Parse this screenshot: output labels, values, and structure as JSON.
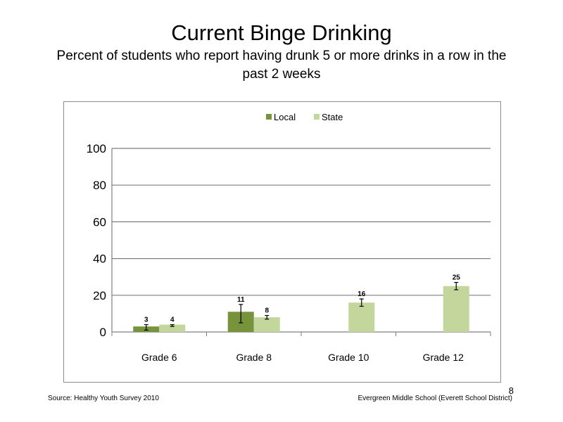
{
  "slide": {
    "title": "Current Binge Drinking",
    "subtitle": "Percent of students who report having drunk 5 or more drinks in a row in the past 2 weeks",
    "source": "Source: Healthy Youth Survey 2010",
    "school": "Evergreen Middle School (Everett School District)",
    "page_number": "8"
  },
  "chart_data": {
    "type": "bar",
    "title": "",
    "xlabel": "",
    "ylabel": "",
    "ylim": [
      0,
      100
    ],
    "yticks": [
      0,
      20,
      40,
      60,
      80,
      100
    ],
    "grid": true,
    "legend_position": "top",
    "categories": [
      "Grade 6",
      "Grade 8",
      "Grade 10",
      "Grade 12"
    ],
    "series": [
      {
        "name": "Local",
        "color": "#77933c",
        "values": [
          3,
          11,
          null,
          null
        ],
        "labels": [
          "3",
          "11",
          "",
          ""
        ],
        "error_low": [
          1,
          5,
          null,
          null
        ],
        "error_high": [
          4,
          15,
          null,
          null
        ]
      },
      {
        "name": "State",
        "color": "#c3d69b",
        "values": [
          4,
          8,
          16,
          25
        ],
        "labels": [
          "4",
          "8",
          "16",
          "25"
        ],
        "error_low": [
          3,
          7,
          14,
          23
        ],
        "error_high": [
          4,
          9,
          18,
          27
        ]
      }
    ]
  }
}
